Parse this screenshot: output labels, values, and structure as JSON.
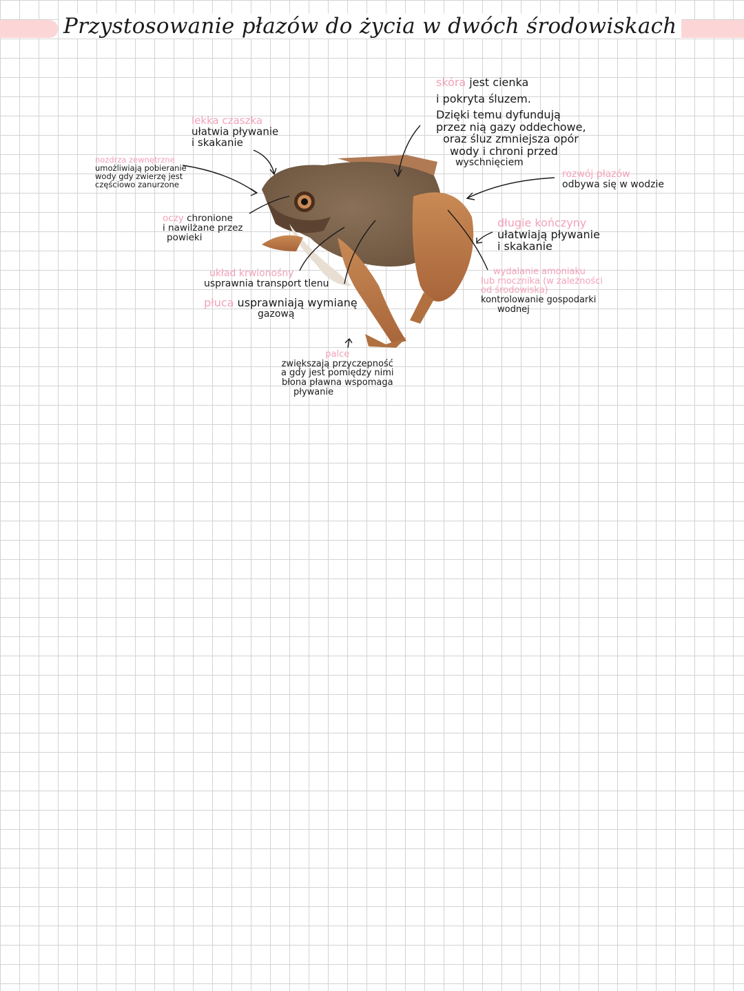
{
  "title": "Przystosowanie płazów do życia w dwóch środowiskach",
  "colors": {
    "accent_pink": "#f2a2b8",
    "banner_pink": "#fcd6d6",
    "ink": "#1a1a1a",
    "grid": "#d3d3d3"
  },
  "image": "frog-photo",
  "annotations": {
    "skeleton": {
      "label": "lekka czaszka",
      "text": [
        "ułatwia pływanie",
        "i skakanie"
      ]
    },
    "nostrils": {
      "label": "nozdrza zewnętrzne",
      "text": [
        "umożliwiają pobieranie",
        "wody gdy zwierzę jest",
        "częściowo zanurzone"
      ]
    },
    "eyes": {
      "label": "oczy",
      "text": [
        "chronione",
        "i nawilżane przez",
        "powieki"
      ]
    },
    "circulation": {
      "label": "układ krwionośny",
      "text": [
        "usprawnia transport tlenu"
      ]
    },
    "lungs": {
      "label": "płuca",
      "text": [
        "usprawniają wymianę",
        "gazową"
      ]
    },
    "toes": {
      "label": "palce",
      "text": [
        "zwiększają przyczepność",
        "a gdy jest pomiędzy nimi",
        "błona pławna wspomaga",
        "pływanie"
      ]
    },
    "skin": {
      "label": "skóra",
      "text": [
        "jest cienka",
        "i pokryta śluzem.",
        "Dzięki temu dyfundują",
        "przez nią gazy oddechowe,",
        "oraz śluz zmniejsza opór",
        "wody i chroni przed",
        "wyschnięciem"
      ]
    },
    "reproduction": {
      "label": "rozwój płazów",
      "text": [
        "odbywa się w wodzie"
      ]
    },
    "hindlimbs": {
      "label": "długie kończyny",
      "text": [
        "ułatwiają pływanie",
        "i skakanie"
      ]
    },
    "excretion": {
      "label": [
        "wydalanie amoniaku",
        "lub mocznika (w zależności",
        "od środowiska)"
      ],
      "text": [
        "kontrolowanie gospodarki",
        "wodnej"
      ]
    }
  }
}
